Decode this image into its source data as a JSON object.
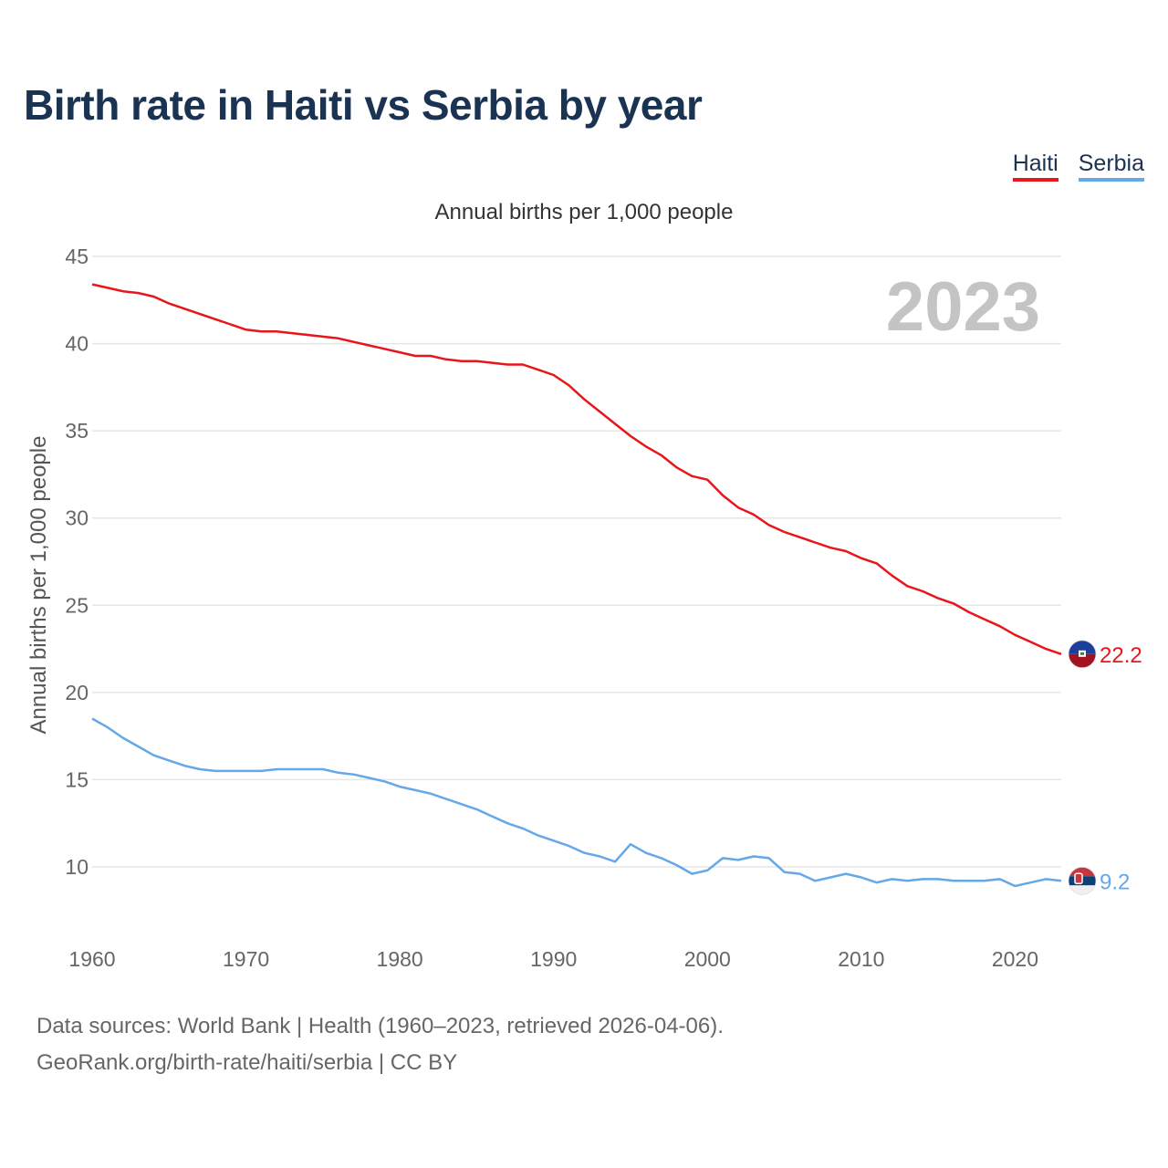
{
  "title": "Birth rate in Haiti vs Serbia by year",
  "legend": [
    {
      "name": "Haiti",
      "color": "#e8161b"
    },
    {
      "name": "Serbia",
      "color": "#64a8e8"
    }
  ],
  "footer": {
    "line1": "Data sources: World Bank | Health (1960–2023, retrieved 2026-04-06).",
    "line2": "GeoRank.org/birth-rate/haiti/serbia | CC BY"
  },
  "chart_data": {
    "type": "line",
    "title": "Birth rate in Haiti vs Serbia by year",
    "subtitle": "Annual births per 1,000 people",
    "xlabel": "",
    "ylabel": "Annual births per 1,000 people",
    "year_label": "2023",
    "xlim": [
      1960,
      2023
    ],
    "ylim": [
      10,
      45
    ],
    "y_ticks": [
      10,
      15,
      20,
      25,
      30,
      35,
      40,
      45
    ],
    "x_ticks": [
      1960,
      1970,
      1980,
      1990,
      2000,
      2010,
      2020
    ],
    "grid": true,
    "legend_position": "top-right",
    "x": [
      1960,
      1961,
      1962,
      1963,
      1964,
      1965,
      1966,
      1967,
      1968,
      1969,
      1970,
      1971,
      1972,
      1973,
      1974,
      1975,
      1976,
      1977,
      1978,
      1979,
      1980,
      1981,
      1982,
      1983,
      1984,
      1985,
      1986,
      1987,
      1988,
      1989,
      1990,
      1991,
      1992,
      1993,
      1994,
      1995,
      1996,
      1997,
      1998,
      1999,
      2000,
      2001,
      2002,
      2003,
      2004,
      2005,
      2006,
      2007,
      2008,
      2009,
      2010,
      2011,
      2012,
      2013,
      2014,
      2015,
      2016,
      2017,
      2018,
      2019,
      2020,
      2021,
      2022,
      2023
    ],
    "series": [
      {
        "name": "Haiti",
        "color": "#e8161b",
        "end_label": "22.2",
        "values": [
          43.4,
          43.2,
          43.0,
          42.9,
          42.7,
          42.3,
          42.0,
          41.7,
          41.4,
          41.1,
          40.8,
          40.7,
          40.7,
          40.6,
          40.5,
          40.4,
          40.3,
          40.1,
          39.9,
          39.7,
          39.5,
          39.3,
          39.3,
          39.1,
          39.0,
          39.0,
          38.9,
          38.8,
          38.8,
          38.5,
          38.2,
          37.6,
          36.8,
          36.1,
          35.4,
          34.7,
          34.1,
          33.6,
          32.9,
          32.4,
          32.2,
          31.3,
          30.6,
          30.2,
          29.6,
          29.2,
          28.9,
          28.6,
          28.3,
          28.1,
          27.7,
          27.4,
          26.7,
          26.1,
          25.8,
          25.4,
          25.1,
          24.6,
          24.2,
          23.8,
          23.3,
          22.9,
          22.5,
          22.2
        ]
      },
      {
        "name": "Serbia",
        "color": "#64a8e8",
        "end_label": "9.2",
        "values": [
          18.5,
          18.0,
          17.4,
          16.9,
          16.4,
          16.1,
          15.8,
          15.6,
          15.5,
          15.5,
          15.5,
          15.5,
          15.6,
          15.6,
          15.6,
          15.6,
          15.4,
          15.3,
          15.1,
          14.9,
          14.6,
          14.4,
          14.2,
          13.9,
          13.6,
          13.3,
          12.9,
          12.5,
          12.2,
          11.8,
          11.5,
          11.2,
          10.8,
          10.6,
          10.3,
          11.3,
          10.8,
          10.5,
          10.1,
          9.6,
          9.8,
          10.5,
          10.4,
          10.6,
          10.5,
          9.7,
          9.6,
          9.2,
          9.4,
          9.6,
          9.4,
          9.1,
          9.3,
          9.2,
          9.3,
          9.3,
          9.2,
          9.2,
          9.2,
          9.3,
          8.9,
          9.1,
          9.3,
          9.2
        ]
      }
    ]
  }
}
